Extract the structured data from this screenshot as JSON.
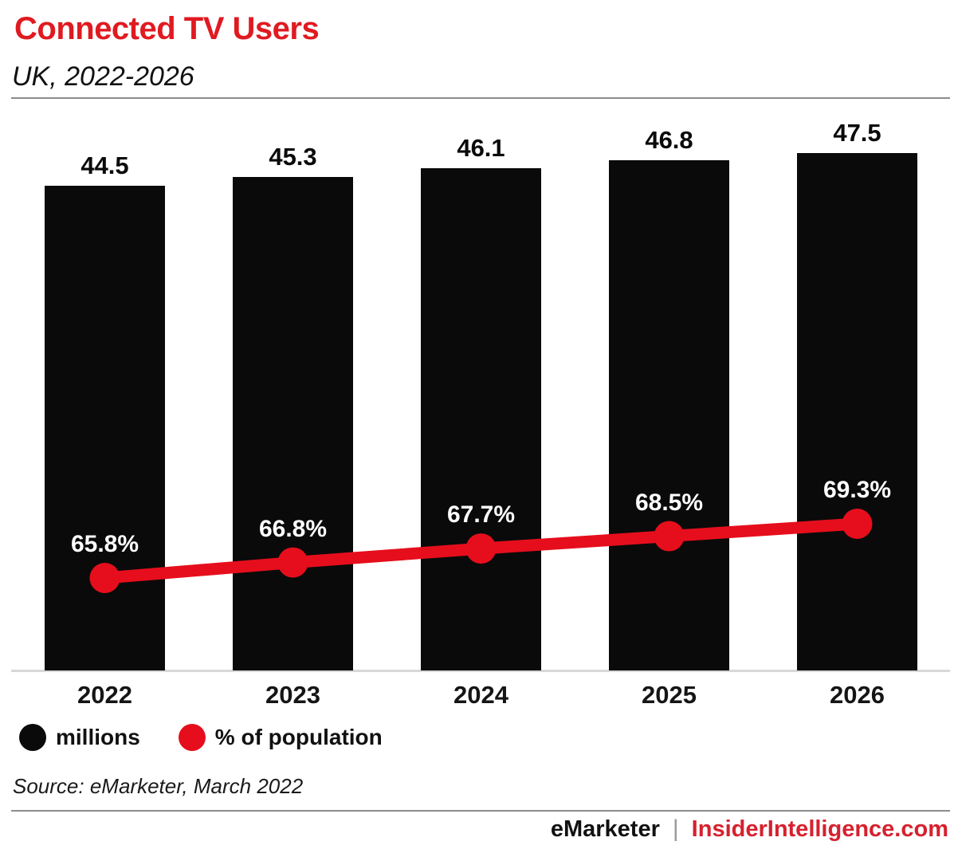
{
  "title": "Connected TV Users",
  "subtitle": "UK, 2022-2026",
  "chart_data": {
    "type": "bar",
    "combo": "bar+line",
    "title": "Connected TV Users",
    "subtitle": "UK, 2022-2026",
    "categories": [
      "2022",
      "2023",
      "2024",
      "2025",
      "2026"
    ],
    "series": [
      {
        "name": "millions",
        "type": "bar",
        "color": "#0a0a0a",
        "values": [
          44.5,
          45.3,
          46.1,
          46.8,
          47.5
        ],
        "value_suffix": ""
      },
      {
        "name": "% of population",
        "type": "line",
        "color": "#e60e1c",
        "values": [
          65.8,
          66.8,
          67.7,
          68.5,
          69.3
        ],
        "value_suffix": "%"
      }
    ],
    "xlabel": "",
    "ylabel": "",
    "bar_axis_min": 0,
    "grid": false,
    "data_labels": true,
    "legend_position": "bottom-left"
  },
  "legend": [
    {
      "label": "millions",
      "color": "#0a0a0a"
    },
    {
      "label": "% of population",
      "color": "#e60e1c"
    }
  ],
  "source": "Source: eMarketer, March 2022",
  "footer": {
    "brand": "eMarketer",
    "separator": "|",
    "site": "InsiderIntelligence.com"
  },
  "colors": {
    "title_red": "#e01a21",
    "line_red": "#e60e1c",
    "footer_red": "#d6212e",
    "bar_black": "#0a0a0a",
    "axis_gray": "#d8d8d8",
    "rule_gray": "#8c8c8c",
    "pct_label_white": "#ffffff"
  }
}
